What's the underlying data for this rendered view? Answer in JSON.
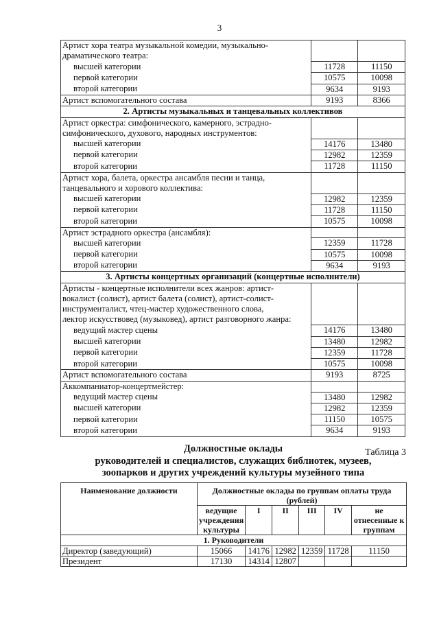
{
  "page_number": "3",
  "table1": {
    "rows": [
      {
        "type": "group",
        "lines": [
          "Артист хора театра музыкальной комедии, музыкально-",
          "драматического театра:"
        ]
      },
      {
        "type": "item",
        "label": "высшей категории",
        "v1": "11728",
        "v2": "11150",
        "pos": "mid"
      },
      {
        "type": "item",
        "label": "первой категории",
        "v1": "10575",
        "v2": "10098",
        "pos": "mid"
      },
      {
        "type": "item",
        "label": "второй категории",
        "v1": "9634",
        "v2": "9193",
        "pos": "last"
      },
      {
        "type": "single",
        "label": "Артист вспомогательного состава",
        "v1": "9193",
        "v2": "8366"
      },
      {
        "type": "section",
        "label": "2. Артисты музыкальных и танцевальных коллективов"
      },
      {
        "type": "group",
        "lines": [
          "Артист оркестра: симфонического, камерного, эстрадно-",
          "симфонического, духового, народных инструментов:"
        ]
      },
      {
        "type": "item",
        "label": "высшей категории",
        "v1": "14176",
        "v2": "13480",
        "pos": "mid"
      },
      {
        "type": "item",
        "label": "первой категории",
        "v1": "12982",
        "v2": "12359",
        "pos": "mid"
      },
      {
        "type": "item",
        "label": "второй категории",
        "v1": "11728",
        "v2": "11150",
        "pos": "last"
      },
      {
        "type": "group",
        "lines": [
          "Артист хора, балета, оркестра ансамбля песни и танца,",
          "танцевального и хорового коллектива:"
        ]
      },
      {
        "type": "item",
        "label": "высшей категории",
        "v1": "12982",
        "v2": "12359",
        "pos": "mid"
      },
      {
        "type": "item",
        "label": "первой категории",
        "v1": "11728",
        "v2": "11150",
        "pos": "mid"
      },
      {
        "type": "item",
        "label": "второй категории",
        "v1": "10575",
        "v2": "10098",
        "pos": "last"
      },
      {
        "type": "group",
        "lines": [
          "Артист эстрадного оркестра (ансамбля):"
        ]
      },
      {
        "type": "item",
        "label": "высшей категории",
        "v1": "12359",
        "v2": "11728",
        "pos": "mid"
      },
      {
        "type": "item",
        "label": "первой категории",
        "v1": "10575",
        "v2": "10098",
        "pos": "mid"
      },
      {
        "type": "item",
        "label": "второй категории",
        "v1": "9634",
        "v2": "9193",
        "pos": "last"
      },
      {
        "type": "section",
        "label": "3. Артисты концертных организаций (концертные исполнители)"
      },
      {
        "type": "group",
        "lines": [
          "Артисты - концертные исполнители всех жанров: артист-",
          "вокалист (солист), артист балета (солист), артист-солист-",
          "инструменталист, чтец-мастер художественного слова,",
          "лектор искусствовед (музыковед), артист разговорного жанра:"
        ]
      },
      {
        "type": "item",
        "label": "ведущий мастер сцены",
        "v1": "14176",
        "v2": "13480",
        "pos": "mid"
      },
      {
        "type": "item",
        "label": "высшей категории",
        "v1": "13480",
        "v2": "12982",
        "pos": "mid"
      },
      {
        "type": "item",
        "label": "первой категории",
        "v1": "12359",
        "v2": "11728",
        "pos": "mid"
      },
      {
        "type": "item",
        "label": "второй категории",
        "v1": "10575",
        "v2": "10098",
        "pos": "last"
      },
      {
        "type": "single",
        "label": "Артист вспомогательного состава",
        "v1": "9193",
        "v2": "8725"
      },
      {
        "type": "group",
        "lines": [
          "Аккомпаниатор-концертмейстер:"
        ]
      },
      {
        "type": "item",
        "label": "ведущий мастер сцены",
        "v1": "13480",
        "v2": "12982",
        "pos": "mid"
      },
      {
        "type": "item",
        "label": "высшей категории",
        "v1": "12982",
        "v2": "12359",
        "pos": "mid"
      },
      {
        "type": "item",
        "label": "первой категории",
        "v1": "11150",
        "v2": "10575",
        "pos": "mid"
      },
      {
        "type": "item",
        "label": "второй категории",
        "v1": "9634",
        "v2": "9193",
        "pos": "last"
      }
    ]
  },
  "table3": {
    "caption": "Таблица 3",
    "title_lines": [
      "Должностные оклады",
      "руководителей и специалистов, служащих библиотек, музеев,",
      "зоопарков и других учреждений культуры музейного типа"
    ],
    "header_position": "Наименование должности",
    "header_salaries": "Должностные оклады по группам оплаты труда (рублей)",
    "groups": [
      "ведущие учреждения культуры",
      "I",
      "II",
      "III",
      "IV",
      "не отнесенные к группам"
    ],
    "section": "1. Руководители",
    "rows": [
      {
        "label": "Директор (заведующий)",
        "values": [
          "15066",
          "14176",
          "12982",
          "12359",
          "11728",
          "11150"
        ]
      },
      {
        "label": "Президент",
        "values": [
          "17130",
          "14314",
          "12807",
          "",
          "",
          ""
        ]
      }
    ]
  }
}
